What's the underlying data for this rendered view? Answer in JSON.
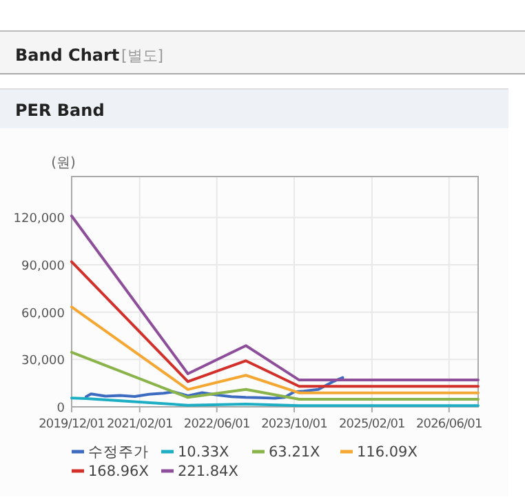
{
  "chart_data": {
    "type": "line",
    "title": "PER Band",
    "ylabel": "(원)",
    "annotations": [
      "Band Chart",
      "[별도]"
    ],
    "xlim": [
      "2019-12-01",
      "2026-12-01"
    ],
    "xticks": [
      {
        "value": "2019-12-01",
        "label": "2019/12/01"
      },
      {
        "value": "2021-02-01",
        "label": "2021/02/01"
      },
      {
        "value": "2022-06-01",
        "label": "2022/06/01"
      },
      {
        "value": "2023-10-01",
        "label": "2023/10/01"
      },
      {
        "value": "2025-02-01",
        "label": "2025/02/01"
      },
      {
        "value": "2026-06-01",
        "label": "2026/06/01"
      }
    ],
    "ylim": [
      0,
      146000
    ],
    "yticks": [
      0,
      {
        "value": 30000,
        "label": "30,000"
      },
      {
        "value": 60000,
        "label": "60,000"
      },
      {
        "value": 90000,
        "label": "90,000"
      },
      {
        "value": 120000,
        "label": "120,000"
      }
    ],
    "grid": true,
    "legend": "bottom",
    "marker": "none",
    "line_style": "solid",
    "series": [
      {
        "name": "수정주가",
        "color": "#3d6bbf",
        "x": [
          "2020-03-01",
          "2020-04-01",
          "2020-07-01",
          "2020-10-01",
          "2021-01-01",
          "2021-04-01",
          "2021-07-01",
          "2021-09-01",
          "2021-12-01",
          "2022-03-01",
          "2022-06-01",
          "2022-09-01",
          "2022-12-01",
          "2023-03-01",
          "2023-06-01",
          "2023-08-01",
          "2023-10-01",
          "2023-12-01",
          "2024-03-01",
          "2024-06-01",
          "2024-08-01"
        ],
        "values": [
          6500,
          8200,
          6800,
          7200,
          6600,
          8000,
          8600,
          9500,
          7000,
          9000,
          7500,
          6500,
          6000,
          5800,
          5500,
          6000,
          9500,
          10000,
          11000,
          16000,
          18500
        ]
      },
      {
        "name": "10.33X",
        "color": "#1eaec3",
        "x": [
          "2019-12-01",
          "2020-03-01",
          "2021-12-01",
          "2022-12-01",
          "2023-11-01",
          "2026-12-01"
        ],
        "values": [
          5600,
          5300,
          1000,
          1800,
          800,
          800
        ]
      },
      {
        "name": "63.21X",
        "color": "#8ab34a",
        "x": [
          "2019-12-01",
          "2021-12-01",
          "2022-12-01",
          "2023-11-01",
          "2026-12-01"
        ],
        "values": [
          34600,
          6000,
          11000,
          4800,
          4800
        ]
      },
      {
        "name": "116.09X",
        "color": "#f5a733",
        "x": [
          "2019-12-01",
          "2021-12-01",
          "2022-12-01",
          "2023-11-01",
          "2026-12-01"
        ],
        "values": [
          63300,
          11000,
          20000,
          8900,
          8900
        ]
      },
      {
        "name": "168.96X",
        "color": "#d2302a",
        "x": [
          "2019-12-01",
          "2021-12-01",
          "2022-12-01",
          "2023-11-01",
          "2026-12-01"
        ],
        "values": [
          92000,
          16000,
          29200,
          13000,
          13000
        ]
      },
      {
        "name": "221.84X",
        "color": "#8e4f9a",
        "x": [
          "2019-12-01",
          "2021-12-01",
          "2022-12-01",
          "2023-11-01",
          "2026-12-01"
        ],
        "values": [
          121000,
          21000,
          38800,
          17000,
          17000
        ]
      }
    ]
  }
}
